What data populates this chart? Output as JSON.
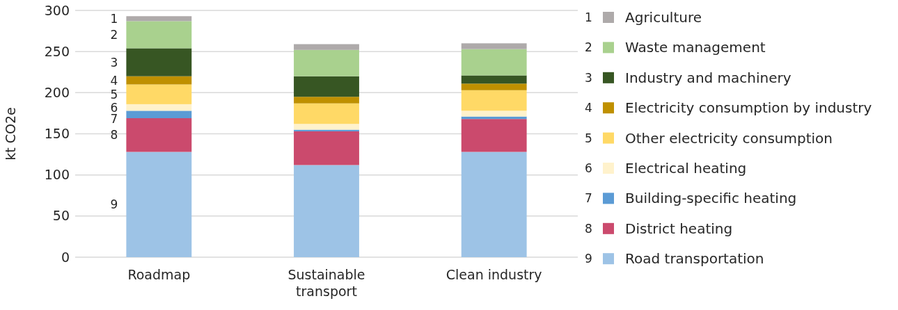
{
  "chart_data": {
    "type": "bar",
    "stacked": true,
    "ylabel": "kt CO2e",
    "categories": [
      "Roadmap",
      "Sustainable transport",
      "Clean industry"
    ],
    "series": [
      {
        "name": "Road transportation",
        "color": "#9dc3e6",
        "values": [
          128,
          112,
          128
        ]
      },
      {
        "name": "District heating",
        "color": "#cb4a6d",
        "values": [
          41,
          41,
          40
        ]
      },
      {
        "name": "Building-specific heating",
        "color": "#5b9bd5",
        "values": [
          9,
          2,
          3
        ]
      },
      {
        "name": "Electrical heating",
        "color": "#fff2cc",
        "values": [
          8,
          7,
          7
        ]
      },
      {
        "name": "Other electricity consumption",
        "color": "#ffd966",
        "values": [
          24,
          25,
          25
        ]
      },
      {
        "name": "Electricity consumption by industry",
        "color": "#bf9000",
        "values": [
          10,
          8,
          8
        ]
      },
      {
        "name": "Industry and machinery",
        "color": "#375623",
        "values": [
          34,
          25,
          10
        ]
      },
      {
        "name": "Waste management",
        "color": "#a9d18e",
        "values": [
          33,
          32,
          32
        ]
      },
      {
        "name": "Agriculture",
        "color": "#aeaaaa",
        "values": [
          6,
          7,
          7
        ]
      }
    ],
    "annotations": [
      "1",
      "2",
      "3",
      "4",
      "5",
      "6",
      "7",
      "8",
      "9"
    ],
    "ylim": [
      0,
      300
    ],
    "yticks": [
      0,
      50,
      100,
      150,
      200,
      250,
      300
    ],
    "grid": "y",
    "legend": "right"
  }
}
